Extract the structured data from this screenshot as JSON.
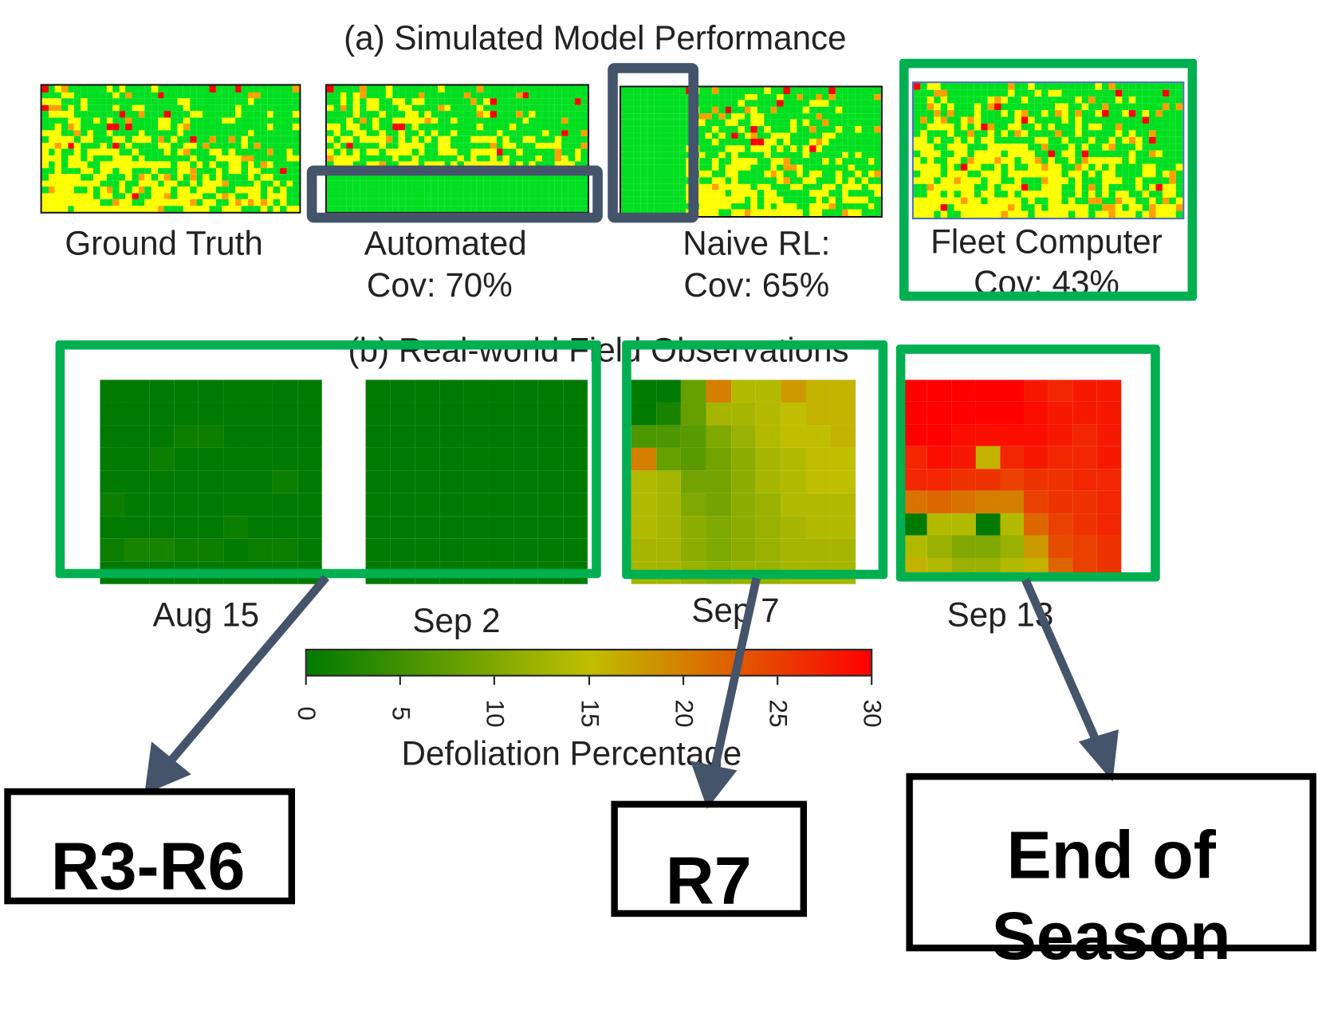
{
  "panel_a": {
    "title": "(a) Simulated Model Performance",
    "maps": [
      {
        "label": "Ground Truth",
        "coverage": ""
      },
      {
        "label": "Automated",
        "coverage": "Cov: 70%"
      },
      {
        "label": "Naive RL:",
        "coverage": "Cov: 65%"
      },
      {
        "label": "Fleet Computer",
        "coverage": "Cov: 43%"
      }
    ],
    "colors": {
      "green": "#00e020",
      "yellow": "#ffff00",
      "orange": "#ffa000",
      "red": "#ff0000"
    }
  },
  "panel_b": {
    "title": "(b) Real-world Field Observations",
    "dates": [
      "Aug 15",
      "Sep 2",
      "Sep 7",
      "Sep 13"
    ],
    "grids": [
      [
        [
          0,
          0,
          0,
          0,
          0,
          0,
          0,
          0,
          0
        ],
        [
          0,
          0,
          0,
          0,
          0,
          0,
          0,
          0,
          0
        ],
        [
          0,
          0,
          0,
          1,
          1,
          0,
          0,
          0,
          0
        ],
        [
          0,
          0,
          1,
          0,
          0,
          0,
          0,
          0,
          0
        ],
        [
          0,
          0,
          0,
          0,
          0,
          0,
          0,
          1,
          0
        ],
        [
          1,
          0,
          0,
          0,
          0,
          0,
          0,
          0,
          0
        ],
        [
          0,
          0,
          0,
          0,
          0,
          1,
          0,
          0,
          0
        ],
        [
          1,
          2,
          2,
          1,
          1,
          0,
          1,
          1,
          0
        ],
        [
          0,
          0,
          0,
          0,
          0,
          0,
          0,
          0,
          0
        ]
      ],
      [
        [
          0,
          0,
          0,
          0,
          0,
          0,
          0,
          0,
          0
        ],
        [
          0,
          0,
          0,
          0,
          0,
          0,
          0,
          0,
          0
        ],
        [
          0,
          0,
          0,
          0,
          0,
          0,
          0,
          0,
          0
        ],
        [
          0,
          0,
          0,
          0,
          0,
          0,
          0,
          0,
          0
        ],
        [
          0,
          0,
          0,
          0,
          0,
          0,
          0,
          0,
          0
        ],
        [
          0,
          0,
          0,
          0,
          0,
          0,
          0,
          0,
          0
        ],
        [
          0,
          0,
          0,
          0,
          0,
          0,
          0,
          0,
          0
        ],
        [
          0,
          0,
          0,
          0,
          0,
          0,
          0,
          0,
          0
        ],
        [
          0,
          0,
          0,
          0,
          0,
          0,
          0,
          0,
          0
        ]
      ],
      [
        [
          0,
          0,
          8,
          20,
          14,
          14,
          18,
          16,
          16
        ],
        [
          0,
          2,
          8,
          13,
          13,
          14,
          15,
          16,
          16
        ],
        [
          6,
          6,
          7,
          10,
          12,
          14,
          15,
          15,
          16
        ],
        [
          20,
          8,
          7,
          9,
          11,
          13,
          14,
          15,
          15
        ],
        [
          14,
          13,
          9,
          9,
          11,
          13,
          14,
          15,
          15
        ],
        [
          14,
          13,
          10,
          9,
          11,
          12,
          14,
          14,
          14
        ],
        [
          14,
          13,
          11,
          10,
          11,
          12,
          13,
          14,
          14
        ],
        [
          13,
          13,
          11,
          10,
          11,
          12,
          13,
          13,
          13
        ],
        [
          13,
          13,
          12,
          11,
          12,
          12,
          13,
          13,
          13
        ]
      ],
      [
        [
          30,
          30,
          30,
          30,
          30,
          28,
          27,
          28,
          28
        ],
        [
          30,
          30,
          30,
          30,
          30,
          29,
          28,
          28,
          28
        ],
        [
          30,
          30,
          29,
          29,
          29,
          29,
          28,
          27,
          28
        ],
        [
          27,
          29,
          28,
          16,
          27,
          28,
          27,
          27,
          28
        ],
        [
          27,
          27,
          26,
          26,
          25,
          26,
          26,
          27,
          27
        ],
        [
          21,
          22,
          21,
          20,
          20,
          25,
          26,
          26,
          27
        ],
        [
          0,
          14,
          14,
          0,
          14,
          22,
          25,
          26,
          27
        ],
        [
          14,
          12,
          10,
          10,
          12,
          18,
          24,
          25,
          26
        ],
        [
          16,
          14,
          12,
          12,
          14,
          16,
          22,
          25,
          26
        ]
      ]
    ]
  },
  "colorbar": {
    "label": "Defoliation Percentage",
    "ticks": [
      "0",
      "5",
      "10",
      "15",
      "20",
      "25",
      "30"
    ],
    "range": [
      0,
      30
    ],
    "stops": [
      "#007a00",
      "#bfbf00",
      "#ff0000"
    ]
  },
  "callouts": [
    {
      "text": "R3-R6"
    },
    {
      "text": "R7"
    },
    {
      "text": "End of Season"
    }
  ],
  "accent_colors": {
    "highlight_green": "#00b050",
    "arrow_slate": "#44546a"
  }
}
